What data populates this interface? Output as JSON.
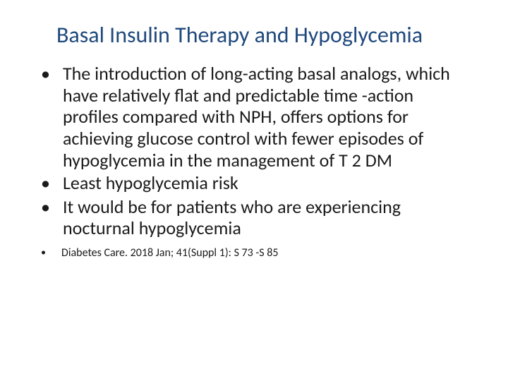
{
  "title": "Basal Insulin Therapy and Hypoglycemia",
  "bullets": [
    "The introduction of long-acting basal analogs, which have relatively flat and predictable time -action profiles compared with NPH, offers options for achieving glucose control with fewer episodes of hypoglycemia in the management of T 2 DM",
    " Least hypoglycemia risk",
    "It would be for patients who are experiencing nocturnal hypoglycemia"
  ],
  "citation": "Diabetes Care. 2018 Jan; 41(Suppl 1): S 73 -S 85",
  "colors": {
    "title": "#1f497d",
    "text": "#1a1a1a",
    "background": "#ffffff"
  },
  "fonts": {
    "title_size": 32,
    "body_size": 26,
    "citation_size": 16
  }
}
